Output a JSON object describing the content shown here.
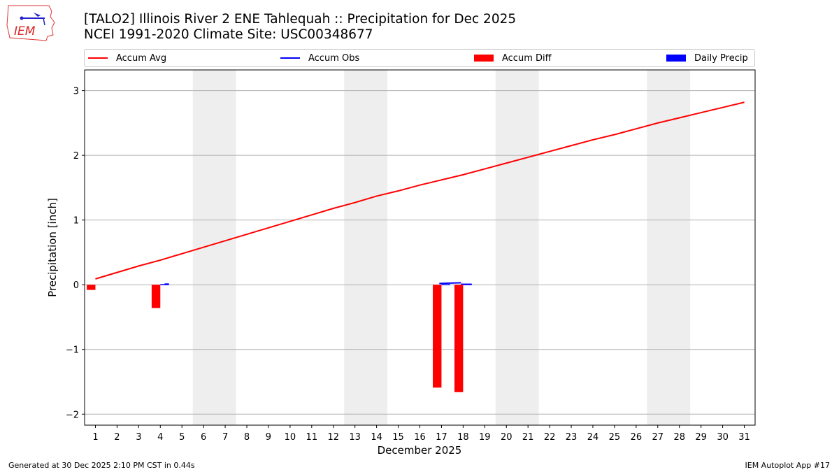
{
  "title": {
    "line1": "[TALO2] Illinois River 2 ENE Tahlequah :: Precipitation for Dec 2025",
    "line2": "NCEI 1991-2020 Climate Site: USC00348677"
  },
  "logo": {
    "text": "IEM"
  },
  "legend": {
    "items": [
      {
        "label": "Accum Avg",
        "type": "line",
        "color": "#ff0000"
      },
      {
        "label": "Accum Obs",
        "type": "line",
        "color": "#0000ff"
      },
      {
        "label": "Accum Diff",
        "type": "patch",
        "color": "#ff0000"
      },
      {
        "label": "Daily Precip",
        "type": "patch",
        "color": "#0000ff"
      }
    ]
  },
  "footer": {
    "left": "Generated at 30 Dec 2025 2:10 PM CST in 0.44s",
    "right": "IEM Autoplot App #17"
  },
  "chart_data": {
    "type": "line",
    "title": "[TALO2] Illinois River 2 ENE Tahlequah :: Precipitation for Dec 2025",
    "subtitle": "NCEI 1991-2020 Climate Site: USC00348677",
    "xlabel": "December 2025",
    "ylabel": "Precipitation [inch]",
    "xlim": [
      0.5,
      31.5
    ],
    "ylim": [
      -2.17,
      3.32
    ],
    "yticks": [
      -2,
      -1,
      0,
      1,
      2,
      3
    ],
    "ytick_labels": [
      "−2",
      "−1",
      "0",
      "1",
      "2",
      "3"
    ],
    "x": [
      1,
      2,
      3,
      4,
      5,
      6,
      7,
      8,
      9,
      10,
      11,
      12,
      13,
      14,
      15,
      16,
      17,
      18,
      19,
      20,
      21,
      22,
      23,
      24,
      25,
      26,
      27,
      28,
      29,
      30,
      31
    ],
    "grid": "y",
    "legend_position": "top",
    "weekend_shading": [
      [
        5.5,
        7.5
      ],
      [
        12.5,
        14.5
      ],
      [
        19.5,
        21.5
      ],
      [
        26.5,
        28.5
      ]
    ],
    "series": [
      {
        "name": "Accum Avg",
        "type": "line",
        "color": "#ff0000",
        "values": [
          0.09,
          0.19,
          0.29,
          0.38,
          0.48,
          0.58,
          0.68,
          0.78,
          0.88,
          0.98,
          1.08,
          1.18,
          1.27,
          1.37,
          1.45,
          1.54,
          1.62,
          1.7,
          1.79,
          1.88,
          1.97,
          2.06,
          2.15,
          2.24,
          2.32,
          2.41,
          2.5,
          2.58,
          2.66,
          2.74,
          2.82
        ]
      },
      {
        "name": "Accum Obs",
        "type": "line",
        "color": "#0000ff",
        "values": [
          0.0,
          0.0,
          0.0,
          0.01,
          0.01,
          0.01,
          0.01,
          0.01,
          0.01,
          0.01,
          0.01,
          0.01,
          0.01,
          0.01,
          0.01,
          0.01,
          0.02,
          0.03,
          0.03,
          0.03,
          0.03,
          0.03,
          0.03,
          0.03,
          0.03,
          0.03,
          0.03,
          0.03,
          0.03,
          0.03,
          0.03
        ]
      },
      {
        "name": "Accum Diff",
        "type": "bar",
        "color": "#ff0000",
        "points": [
          {
            "x": 1,
            "y": -0.08
          },
          {
            "x": 4,
            "y": -0.36
          },
          {
            "x": 17,
            "y": -1.59
          },
          {
            "x": 18,
            "y": -1.66
          }
        ]
      },
      {
        "name": "Daily Precip",
        "type": "bar",
        "color": "#0000ff",
        "points": [
          {
            "x": 4,
            "y": 0.01
          },
          {
            "x": 17,
            "y": 0.01
          },
          {
            "x": 18,
            "y": 0.01
          }
        ]
      }
    ]
  }
}
